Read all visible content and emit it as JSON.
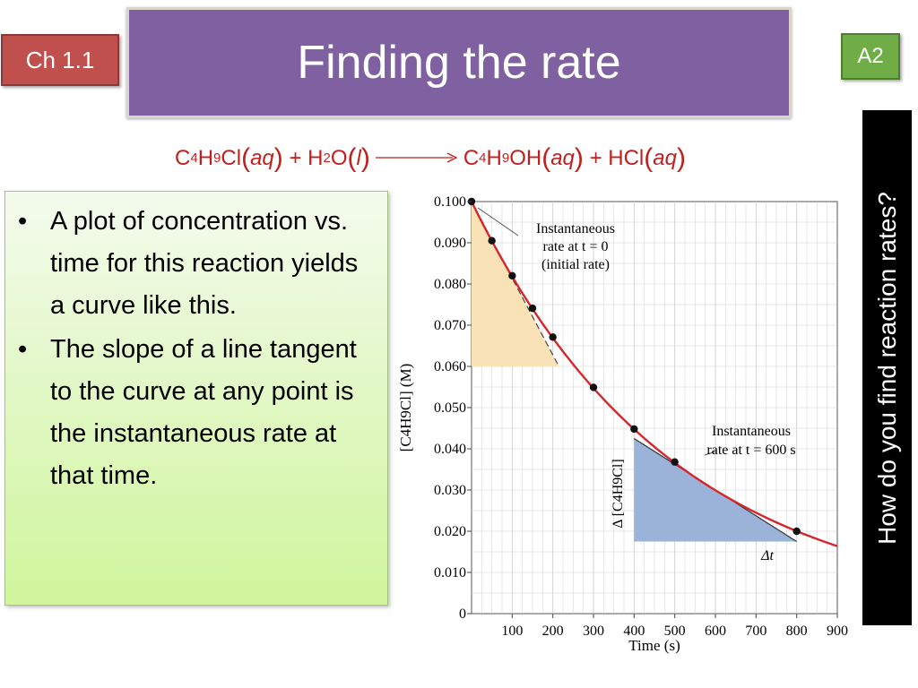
{
  "slide": {
    "title": "Finding the rate",
    "chapter_badge": "Ch 1.1",
    "level_badge": "A2",
    "side_question": "How do you find reaction rates?"
  },
  "equation": {
    "r1_base": "C",
    "r1_s1": "4",
    "r1_mid": "H",
    "r1_s2": "9",
    "r1_end": "Cl",
    "r1_state": "aq",
    "plus1": "+",
    "r2_base": "H",
    "r2_s1": "2",
    "r2_end": "O",
    "r2_state": "l",
    "p1_base": "C",
    "p1_s1": "4",
    "p1_mid": "H",
    "p1_s2": "9",
    "p1_end": "OH",
    "p1_state": "aq",
    "plus2": "+",
    "p2": "HCl",
    "p2_state": "aq"
  },
  "bullets": [
    "A plot of concentration vs. time for this reaction yields a curve like this.",
    "The slope of a line tangent to the curve at any point is the instantaneous rate at that time."
  ],
  "chart_data": {
    "type": "line",
    "xlabel": "Time (s)",
    "ylabel": "[C4H9Cl] (M)",
    "xlim": [
      0,
      900
    ],
    "ylim": [
      0,
      0.1
    ],
    "xticks": [
      "100",
      "200",
      "300",
      "400",
      "500",
      "600",
      "700",
      "800",
      "900"
    ],
    "yticks": [
      "0",
      "0.010",
      "0.020",
      "0.030",
      "0.040",
      "0.050",
      "0.060",
      "0.070",
      "0.080",
      "0.090",
      "0.100"
    ],
    "grid": true,
    "points": [
      {
        "x": 0,
        "y": 0.1
      },
      {
        "x": 50,
        "y": 0.0905
      },
      {
        "x": 100,
        "y": 0.082
      },
      {
        "x": 150,
        "y": 0.0741
      },
      {
        "x": 200,
        "y": 0.0671
      },
      {
        "x": 300,
        "y": 0.0549
      },
      {
        "x": 400,
        "y": 0.0448
      },
      {
        "x": 500,
        "y": 0.0368
      },
      {
        "x": 800,
        "y": 0.02
      }
    ],
    "annotations": {
      "initial_1": "Instantaneous",
      "initial_2": "rate at t = 0",
      "initial_3": "(initial rate)",
      "t600_1": "Instantaneous",
      "t600_2": "rate at t = 600 s",
      "delta_conc": "Δ [C4H9Cl]",
      "delta_t": "Δt"
    },
    "colors": {
      "curve": "#d7262b",
      "initial_triangle": "#f8e2b6",
      "t600_triangle": "#9bb3d8",
      "grid": "#cfcfcf"
    }
  }
}
